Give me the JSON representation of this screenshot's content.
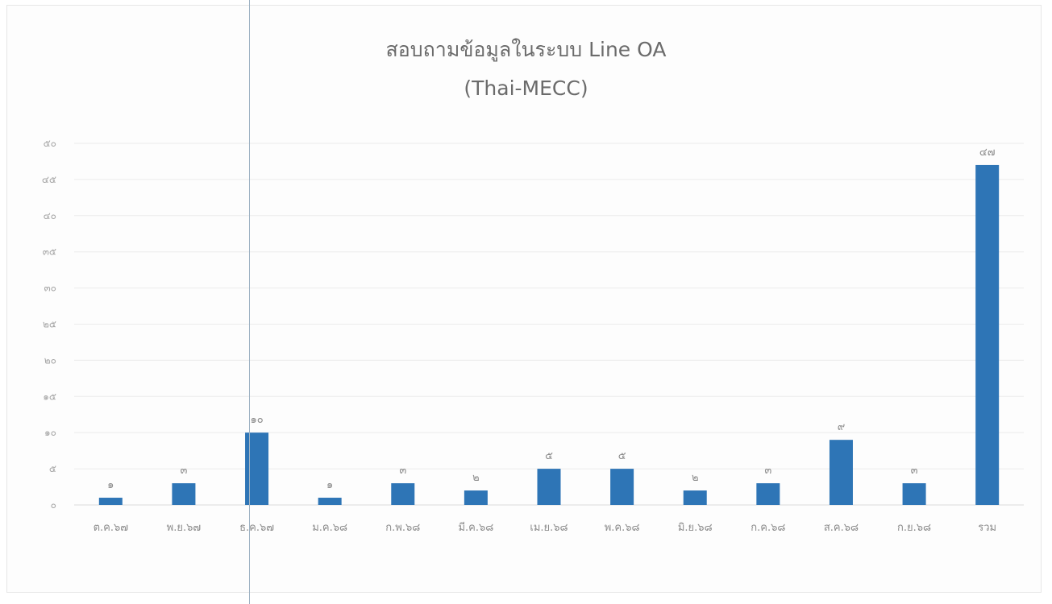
{
  "chart_data": {
    "type": "bar",
    "title": "สอบถามข้อมูลในระบบ Line OA",
    "subtitle": "(Thai-MECC)",
    "xlabel": "",
    "ylabel": "",
    "categories": [
      "ต.ค.๖๗",
      "พ.ย.๖๗",
      "ธ.ค.๖๗",
      "ม.ค.๖๘",
      "ก.พ.๖๘",
      "มี.ค.๖๘",
      "เม.ย.๖๘",
      "พ.ค.๖๘",
      "มิ.ย.๖๘",
      "ก.ค.๖๘",
      "ส.ค.๖๘",
      "ก.ย.๖๘",
      "รวม"
    ],
    "values": [
      1,
      3,
      10,
      1,
      3,
      2,
      5,
      5,
      2,
      3,
      9,
      3,
      47
    ],
    "data_labels": [
      "๑",
      "๓",
      "๑๐",
      "๑",
      "๓",
      "๒",
      "๕",
      "๕",
      "๒",
      "๓",
      "๙",
      "๓",
      "๔๗"
    ],
    "ylim": [
      0,
      50
    ],
    "yticks": [
      0,
      5,
      10,
      15,
      20,
      25,
      30,
      35,
      40,
      45,
      50
    ],
    "ytick_labels": [
      "๐",
      "๕",
      "๑๐",
      "๑๕",
      "๒๐",
      "๒๕",
      "๓๐",
      "๓๕",
      "๔๐",
      "๔๕",
      "๕๐"
    ],
    "grid": true,
    "legend": "none",
    "bar_color": "#2e75b6"
  }
}
